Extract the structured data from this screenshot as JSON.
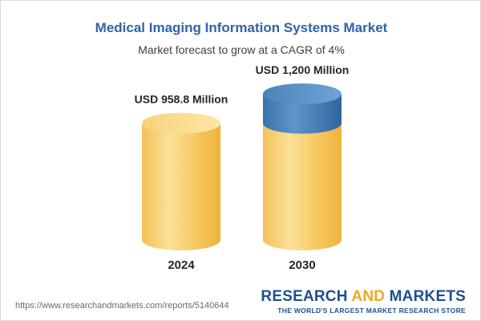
{
  "header": {
    "title": "Medical Imaging Information Systems Market",
    "subtitle": "Market forecast to grow at a CAGR of 4%"
  },
  "footer": {
    "source_url": "https://www.researchandmarkets.com/reports/5140644",
    "brand_part1": "RESEARCH ",
    "brand_part2": "AND",
    "brand_part3": " MARKETS",
    "brand_tagline": "THE WORLD'S LARGEST MARKET RESEARCH STORE"
  },
  "colors": {
    "title": "#2f63a8",
    "bar_gold": "#f5c04f",
    "bar_blue": "#3d78b3",
    "brand_blue": "#1f4e8c",
    "brand_accent": "#f0a81e"
  },
  "chart_data": {
    "type": "bar",
    "categories": [
      "2024",
      "2030"
    ],
    "values": [
      958.8,
      1200
    ],
    "value_labels": [
      "USD 958.8 Million",
      "USD 1,200 Million"
    ],
    "ylim": [
      0,
      1200
    ]
  }
}
